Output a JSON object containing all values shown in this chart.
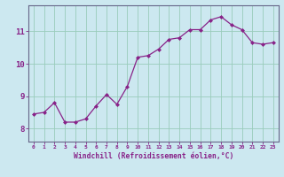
{
  "x": [
    0,
    1,
    2,
    3,
    4,
    5,
    6,
    7,
    8,
    9,
    10,
    11,
    12,
    13,
    14,
    15,
    16,
    17,
    18,
    19,
    20,
    21,
    22,
    23
  ],
  "y": [
    8.45,
    8.5,
    8.8,
    8.2,
    8.2,
    8.3,
    8.7,
    9.05,
    8.75,
    9.3,
    10.2,
    10.25,
    10.45,
    10.75,
    10.8,
    11.05,
    11.05,
    11.35,
    11.45,
    11.2,
    11.05,
    10.65,
    10.6,
    10.65
  ],
  "line_color": "#882288",
  "marker": "D",
  "marker_size": 2.0,
  "bg_color": "#cce8f0",
  "grid_color": "#99ccbb",
  "xlabel": "Windchill (Refroidissement éolien,°C)",
  "xlabel_color": "#882288",
  "tick_color": "#882288",
  "spine_color": "#666688",
  "ylabel_ticks": [
    8,
    9,
    10,
    11
  ],
  "xlim": [
    -0.5,
    23.5
  ],
  "ylim": [
    7.6,
    11.8
  ],
  "xtick_labels": [
    "0",
    "1",
    "2",
    "3",
    "4",
    "5",
    "6",
    "7",
    "8",
    "9",
    "10",
    "11",
    "12",
    "13",
    "14",
    "15",
    "16",
    "17",
    "18",
    "19",
    "20",
    "21",
    "22",
    "23"
  ]
}
